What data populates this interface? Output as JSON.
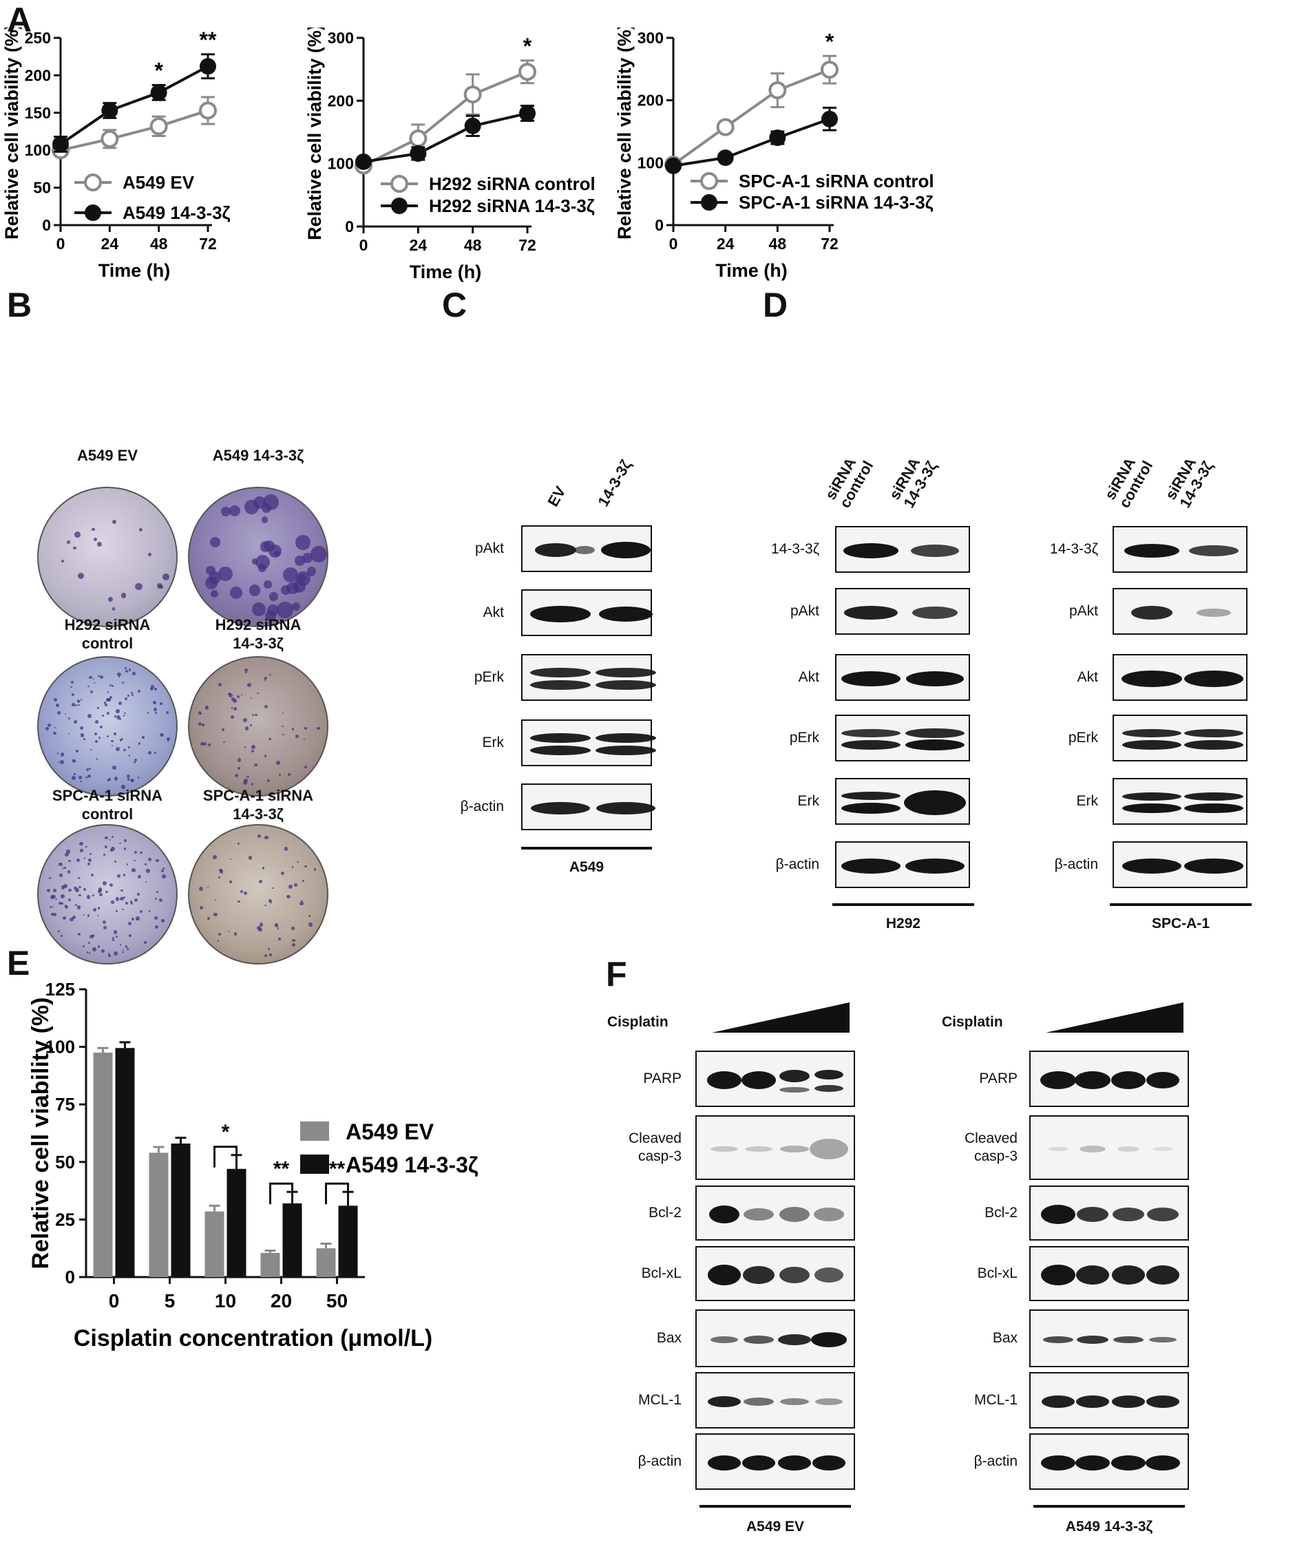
{
  "panels": {
    "A": "A",
    "B": "B",
    "C": "C",
    "D": "D",
    "E": "E",
    "F": "F"
  },
  "chart_data": [
    {
      "type": "line",
      "panel": "A",
      "x": [
        0,
        24,
        48,
        72
      ],
      "xlabel": "Time (h)",
      "ylabel": "Relative cell viability (%)",
      "ylim": [
        0,
        250
      ],
      "yticks": [
        0,
        50,
        100,
        150,
        200,
        250
      ],
      "series": [
        {
          "name": "A549 EV",
          "values": [
            100,
            115,
            132,
            153
          ],
          "errors": [
            5,
            12,
            13,
            18
          ],
          "marker": "open",
          "color": "#8a8a8a"
        },
        {
          "name": "A549 14-3-3ζ",
          "values": [
            108,
            153,
            177,
            212
          ],
          "errors": [
            10,
            10,
            10,
            16
          ],
          "marker": "filled",
          "color": "#111111"
        }
      ],
      "significance": [
        {
          "x": 48,
          "label": "*"
        },
        {
          "x": 72,
          "label": "**"
        }
      ]
    },
    {
      "type": "line",
      "panel": "A",
      "x": [
        0,
        24,
        48,
        72
      ],
      "xlabel": "Time (h)",
      "ylabel": "Relative cell viability (%)",
      "ylim": [
        0,
        300
      ],
      "yticks": [
        0,
        100,
        200,
        300
      ],
      "series": [
        {
          "name": "H292 siRNA control",
          "values": [
            97,
            140,
            210,
            246
          ],
          "errors": [
            8,
            22,
            32,
            18
          ],
          "marker": "open",
          "color": "#8a8a8a"
        },
        {
          "name": "H292 siRNA 14-3-3ζ",
          "values": [
            103,
            116,
            160,
            180
          ],
          "errors": [
            5,
            10,
            16,
            12
          ],
          "marker": "filled",
          "color": "#111111"
        }
      ],
      "significance": [
        {
          "x": 72,
          "label": "*"
        }
      ]
    },
    {
      "type": "line",
      "panel": "A",
      "x": [
        0,
        24,
        48,
        72
      ],
      "xlabel": "Time (h)",
      "ylabel": "Relative cell viability (%)",
      "ylim": [
        0,
        300
      ],
      "yticks": [
        0,
        100,
        200,
        300
      ],
      "series": [
        {
          "name": "SPC-A-1 siRNA control",
          "values": [
            97,
            157,
            216,
            249
          ],
          "errors": [
            6,
            5,
            27,
            22
          ],
          "marker": "open",
          "color": "#8a8a8a"
        },
        {
          "name": "SPC-A-1 siRNA 14-3-3ζ",
          "values": [
            95,
            108,
            140,
            170
          ],
          "errors": [
            5,
            4,
            10,
            18
          ],
          "marker": "filled",
          "color": "#111111"
        }
      ],
      "significance": [
        {
          "x": 72,
          "label": "*"
        }
      ]
    },
    {
      "type": "bar",
      "panel": "E",
      "categories": [
        "0",
        "5",
        "10",
        "20",
        "50"
      ],
      "xlabel": "Cisplatin concentration (μmol/L)",
      "ylabel": "Relative cell viability (%)",
      "ylim": [
        0,
        125
      ],
      "yticks": [
        0,
        25,
        50,
        75,
        100,
        125
      ],
      "series": [
        {
          "name": "A549 EV",
          "values": [
            97.5,
            54,
            28.5,
            10.5,
            12.5
          ],
          "errors": [
            2,
            2.5,
            2.5,
            1,
            2
          ],
          "color": "#8a8a8a"
        },
        {
          "name": "A549 14-3-3ζ",
          "values": [
            99.5,
            58,
            47,
            32,
            31
          ],
          "errors": [
            2.5,
            2.5,
            6,
            5,
            6
          ],
          "color": "#111111"
        }
      ],
      "significance": [
        {
          "category": "10",
          "label": "*"
        },
        {
          "category": "20",
          "label": "**"
        },
        {
          "category": "50",
          "label": "**"
        }
      ]
    }
  ],
  "panel_b": {
    "dishes": [
      {
        "label": "A549 EV"
      },
      {
        "label": "A549 14-3-3ζ"
      },
      {
        "label": "H292 siRNA\ncontrol"
      },
      {
        "label": "H292 siRNA\n14-3-3ζ"
      },
      {
        "label": "SPC-A-1 siRNA\ncontrol"
      },
      {
        "label": "SPC-A-1 siRNA\n14-3-3ζ"
      }
    ]
  },
  "panel_c": {
    "lanes": [
      "EV",
      "14-3-3ζ"
    ],
    "proteins": [
      "pAkt",
      "Akt",
      "pErk",
      "Erk",
      "β-actin"
    ],
    "cell_line": "A549"
  },
  "panel_d": {
    "blots": [
      {
        "lanes": [
          "siRNA\ncontrol",
          "siRNA\n14-3-3ζ"
        ],
        "proteins": [
          "14-3-3ζ",
          "pAkt",
          "Akt",
          "pErk",
          "Erk",
          "β-actin"
        ],
        "cell_line": "H292"
      },
      {
        "lanes": [
          "siRNA\ncontrol",
          "siRNA\n14-3-3ζ"
        ],
        "proteins": [
          "14-3-3ζ",
          "pAkt",
          "Akt",
          "pErk",
          "Erk",
          "β-actin"
        ],
        "cell_line": "SPC-A-1"
      }
    ]
  },
  "panel_f": {
    "treatment": "Cisplatin",
    "blots": [
      {
        "proteins": [
          "PARP",
          "Cleaved\ncasp-3",
          "Bcl-2",
          "Bcl-xL",
          "Bax",
          "MCL-1",
          "β-actin"
        ],
        "cell_line": "A549 EV"
      },
      {
        "proteins": [
          "PARP",
          "Cleaved\ncasp-3",
          "Bcl-2",
          "Bcl-xL",
          "Bax",
          "MCL-1",
          "β-actin"
        ],
        "cell_line": "A549 14-3-3ζ"
      }
    ]
  }
}
